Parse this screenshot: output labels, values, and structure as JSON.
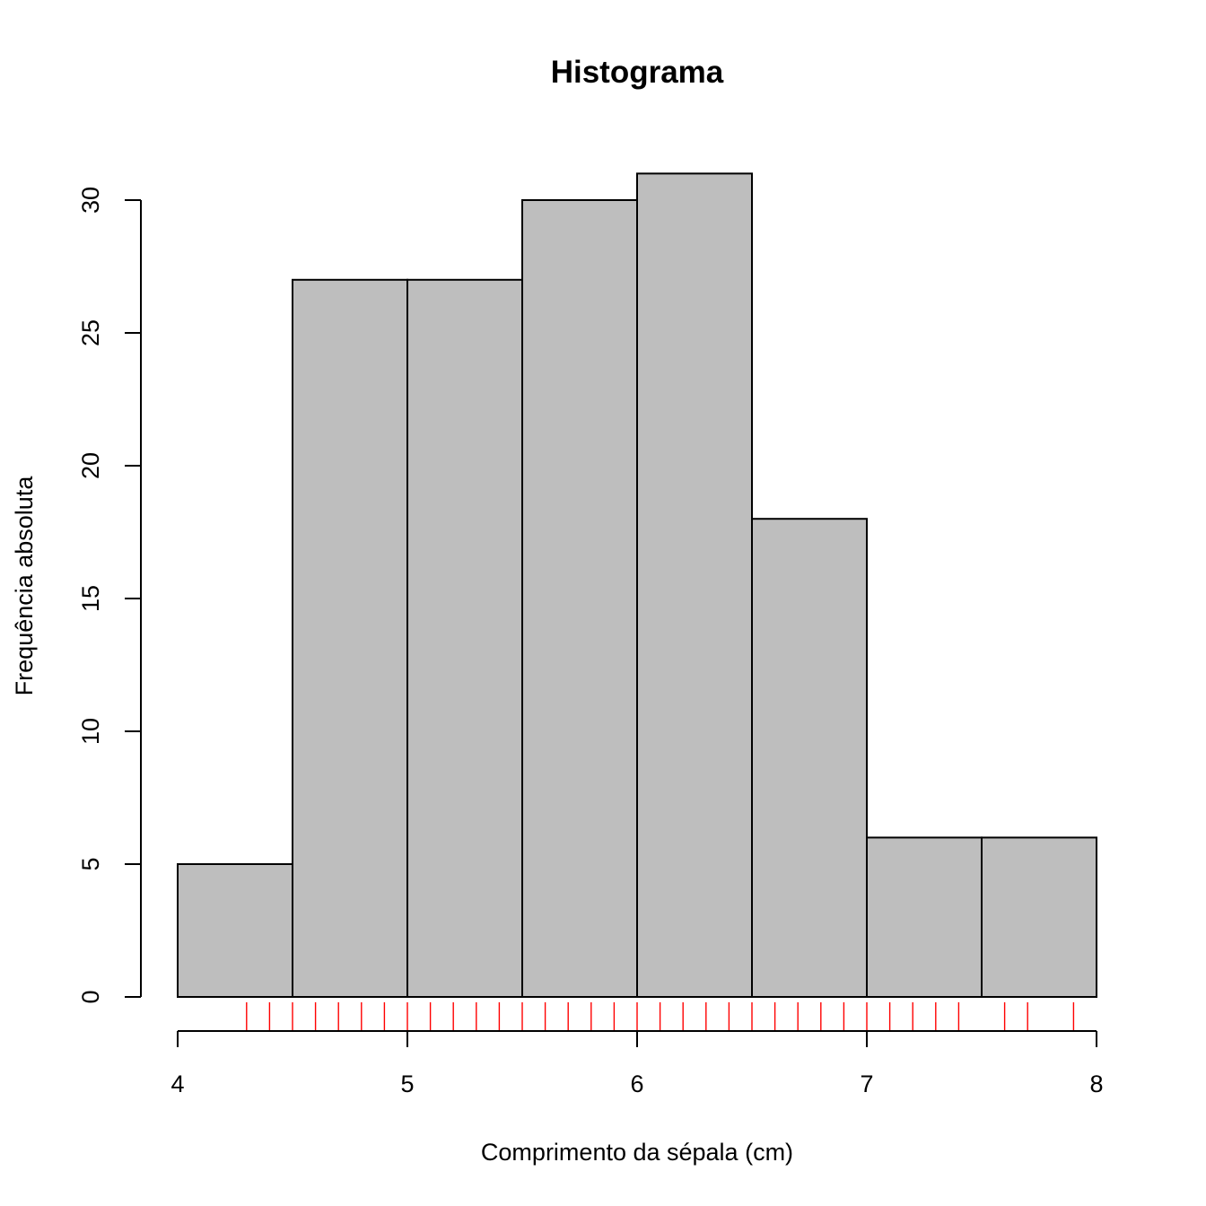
{
  "chart_data": {
    "type": "bar",
    "title": "Histograma",
    "xlabel": "Comprimento da sépala (cm)",
    "ylabel": "Frequência absoluta",
    "bins": [
      {
        "from": 4.0,
        "to": 4.5,
        "count": 5
      },
      {
        "from": 4.5,
        "to": 5.0,
        "count": 27
      },
      {
        "from": 5.0,
        "to": 5.5,
        "count": 27
      },
      {
        "from": 5.5,
        "to": 6.0,
        "count": 30
      },
      {
        "from": 6.0,
        "to": 6.5,
        "count": 31
      },
      {
        "from": 6.5,
        "to": 7.0,
        "count": 18
      },
      {
        "from": 7.0,
        "to": 7.5,
        "count": 6
      },
      {
        "from": 7.5,
        "to": 8.0,
        "count": 6
      }
    ],
    "xlim": [
      4,
      8
    ],
    "ylim": [
      0,
      31
    ],
    "x_ticks": [
      "4",
      "5",
      "6",
      "7",
      "8"
    ],
    "y_ticks": [
      "0",
      "5",
      "10",
      "15",
      "20",
      "25",
      "30"
    ],
    "rug_values": [
      4.3,
      4.4,
      4.5,
      4.6,
      4.7,
      4.8,
      4.9,
      5.0,
      5.1,
      5.2,
      5.3,
      5.4,
      5.5,
      5.6,
      5.7,
      5.8,
      5.9,
      6.0,
      6.1,
      6.2,
      6.3,
      6.4,
      6.5,
      6.6,
      6.7,
      6.8,
      6.9,
      7.0,
      7.1,
      7.2,
      7.3,
      7.4,
      7.6,
      7.7,
      7.9
    ],
    "grid": false,
    "colors": {
      "bar_fill": "#bebebe",
      "bar_stroke": "#000000",
      "rug": "#ff0000",
      "axis": "#000000"
    }
  }
}
